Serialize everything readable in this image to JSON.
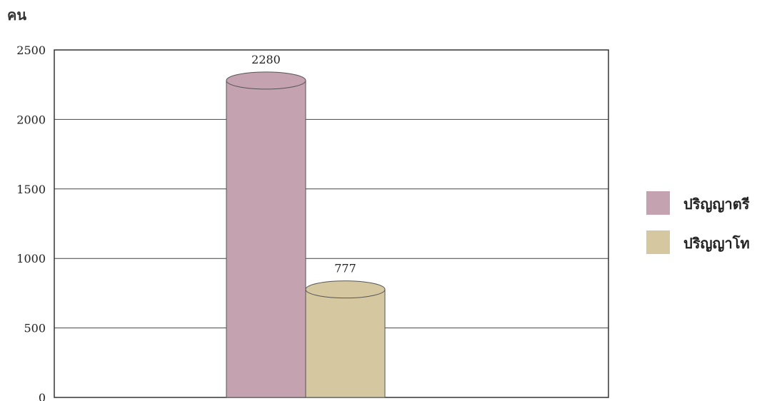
{
  "chart_data": {
    "type": "bar",
    "ylabel": "คน",
    "ylim": [
      0,
      2500
    ],
    "yticks": [
      0,
      500,
      1000,
      1500,
      2000,
      2500
    ],
    "categories": [
      ""
    ],
    "grid": true,
    "legend_position": "right",
    "series": [
      {
        "name": "ปริญญาตรี",
        "values": [
          2280
        ],
        "color": "#c4a2b0"
      },
      {
        "name": "ปริญญาโท",
        "values": [
          777
        ],
        "color": "#d5c7a0"
      }
    ]
  }
}
